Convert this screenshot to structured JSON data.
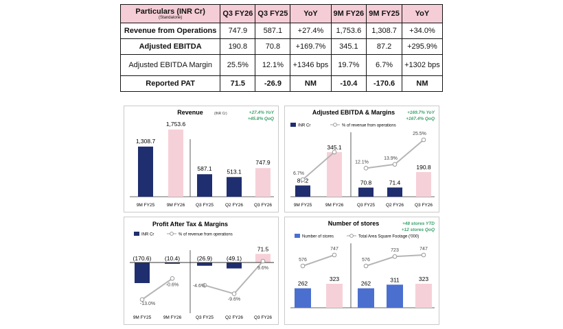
{
  "table": {
    "headers": [
      "Particulars (INR Cr)",
      "Q3 FY26",
      "Q3 FY25",
      "YoY",
      "9M FY26",
      "9M FY25",
      "YoY"
    ],
    "header_sub": "(Standalone)",
    "rows": [
      {
        "label": "Revenue from Operations",
        "cells": [
          "747.9",
          "587.1",
          "+27.4%",
          "1,753.6",
          "1,308.7",
          "+34.0%"
        ]
      },
      {
        "label": "Adjusted EBITDA",
        "cells": [
          "190.8",
          "70.8",
          "+169.7%",
          "345.1",
          "87.2",
          "+295.9%"
        ]
      },
      {
        "label": "Adjusted EBITDA Margin",
        "cells": [
          "25.5%",
          "12.1%",
          "+1346 bps",
          "19.7%",
          "6.7%",
          "+1302 bps"
        ]
      },
      {
        "label": "Reported PAT",
        "cells": [
          "71.5",
          "-26.9",
          "NM",
          "-10.4",
          "-170.6",
          "NM"
        ]
      }
    ]
  },
  "colors": {
    "navy": "#1f2e6e",
    "pink": "#f6d0d8",
    "blue": "#4a6fcf",
    "green": "#38a169",
    "line": "#b5b5b5",
    "header_bg": "#f4cdd6"
  },
  "chart_data": [
    {
      "type": "bar",
      "title": "Revenue",
      "unit": "(INR Cr)",
      "growth": [
        "+27.4% YoY",
        "+45.8% QoQ"
      ],
      "categories": [
        "9M FY25",
        "9M FY26",
        "Q3 FY25",
        "Q2 FY26",
        "Q3 FY26"
      ],
      "values": [
        1308.7,
        1753.6,
        587.1,
        513.1,
        747.9
      ],
      "value_labels": [
        "1,308.7",
        "1,753.6",
        "587.1",
        "513.1",
        "747.9"
      ],
      "colors": [
        "navy",
        "pink",
        "navy",
        "navy",
        "pink"
      ]
    },
    {
      "type": "bar+line",
      "title": "Adjusted EBITDA & Margins",
      "growth": [
        "+169.7% YoY",
        "+167.4% QoQ"
      ],
      "legend": [
        "INR Cr",
        "% of revenue from operations"
      ],
      "categories": [
        "9M FY25",
        "9M FY26",
        "Q3 FY25",
        "Q2 FY26",
        "Q3 FY26"
      ],
      "values": [
        87.2,
        345.1,
        70.8,
        71.4,
        190.8
      ],
      "value_labels": [
        "87.2",
        "345.1",
        "70.8",
        "71.4",
        "190.8"
      ],
      "margins": [
        6.7,
        19.7,
        12.1,
        13.9,
        25.5
      ],
      "margin_labels": [
        "6.7%",
        "",
        "12.1%",
        "13.9%",
        "25.5%"
      ],
      "colors": [
        "navy",
        "pink",
        "navy",
        "navy",
        "pink"
      ]
    },
    {
      "type": "bar+line",
      "title": "Profit After Tax & Margins",
      "legend": [
        "INR Cr",
        "% of revenue from operations"
      ],
      "categories": [
        "9M FY25",
        "9M FY26",
        "Q3 FY25",
        "Q2 FY26",
        "Q3 FY26"
      ],
      "values": [
        -170.6,
        -10.4,
        -26.9,
        -49.1,
        71.5
      ],
      "value_labels": [
        "(170.6)",
        "(10.4)",
        "(26.9)",
        "(49.1)",
        "71.5"
      ],
      "margins": [
        -13.0,
        -0.6,
        -4.6,
        -9.6,
        9.6
      ],
      "margin_labels": [
        "-13.0%",
        "-0.6%",
        "-4.6%",
        "-9.6%",
        "9.6%"
      ],
      "colors": [
        "navy",
        "navy",
        "navy",
        "navy",
        "pink"
      ]
    },
    {
      "type": "bar+line",
      "title": "Number of stores",
      "growth": [
        "+48 stores YTD",
        "+12 stores QoQ"
      ],
      "legend": [
        "Number of stores",
        "Total Area Square Footage ('000)"
      ],
      "categories": [
        "",
        "",
        "",
        "",
        ""
      ],
      "values": [
        262,
        323,
        262,
        311,
        323
      ],
      "value_labels": [
        "262",
        "323",
        "262",
        "311",
        "323"
      ],
      "area": [
        576,
        747,
        576,
        723,
        747
      ],
      "area_labels": [
        "576",
        "747",
        "576",
        "723",
        "747"
      ],
      "colors": [
        "blue",
        "pink",
        "blue",
        "blue",
        "pink"
      ]
    }
  ]
}
